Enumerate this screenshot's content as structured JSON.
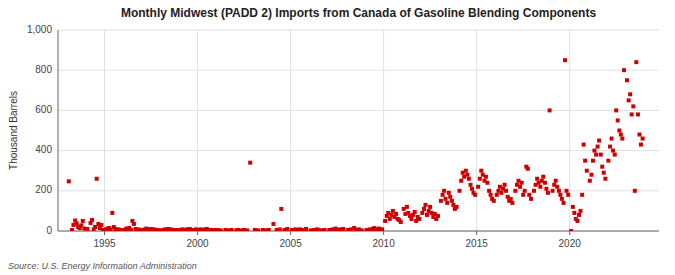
{
  "chart_data": {
    "type": "scatter",
    "title": "Monthly Midwest (PADD 2) Imports from Canada of Gasoline Blending Components",
    "y_label": "Thousand Barrels",
    "annotations": [
      "Source: U.S. Energy Information Administration"
    ],
    "color": "#cc0000",
    "marker": "square",
    "grid": true,
    "xlim": [
      1992.5,
      2024.8
    ],
    "xticks": [
      1995,
      2000,
      2005,
      2010,
      2015,
      2020
    ],
    "ylim": [
      0,
      1000
    ],
    "yticks": [
      0,
      200,
      400,
      600,
      800,
      {
        "value": 1000,
        "label": "1,000"
      }
    ],
    "x": [
      1993.08,
      1993.25,
      1993.33,
      1993.42,
      1993.5,
      1993.58,
      1993.67,
      1993.75,
      1993.83,
      1993.92,
      1994.08,
      1994.25,
      1994.33,
      1994.42,
      1994.5,
      1994.58,
      1994.67,
      1994.75,
      1994.83,
      1994.92,
      1995.08,
      1995.17,
      1995.25,
      1995.33,
      1995.42,
      1995.5,
      1995.58,
      1995.67,
      1995.75,
      1995.83,
      1995.92,
      1996.08,
      1996.17,
      1996.25,
      1996.33,
      1996.42,
      1996.5,
      1996.58,
      1996.67,
      1996.75,
      1996.83,
      1996.92,
      1997.08,
      1997.17,
      1997.25,
      1997.33,
      1997.42,
      1997.5,
      1997.58,
      1997.67,
      1997.75,
      1997.83,
      1997.92,
      1998.08,
      1998.17,
      1998.25,
      1998.33,
      1998.42,
      1998.5,
      1998.58,
      1998.67,
      1998.75,
      1998.83,
      1998.92,
      1999.08,
      1999.17,
      1999.25,
      1999.33,
      1999.42,
      1999.5,
      1999.58,
      1999.67,
      1999.75,
      1999.83,
      1999.92,
      2000.08,
      2000.17,
      2000.25,
      2000.33,
      2000.42,
      2000.5,
      2000.58,
      2000.67,
      2000.75,
      2000.83,
      2000.92,
      2001.08,
      2001.25,
      2001.5,
      2001.67,
      2001.83,
      2002.08,
      2002.17,
      2002.33,
      2002.5,
      2002.67,
      2002.83,
      2003.08,
      2003.25,
      2003.5,
      2003.67,
      2003.83,
      2004.08,
      2004.25,
      2004.42,
      2004.5,
      2004.67,
      2004.83,
      2005.08,
      2005.25,
      2005.42,
      2005.5,
      2005.67,
      2005.83,
      2006.08,
      2006.25,
      2006.42,
      2006.5,
      2006.67,
      2006.83,
      2007.08,
      2007.25,
      2007.42,
      2007.5,
      2007.67,
      2007.83,
      2008.08,
      2008.25,
      2008.42,
      2008.5,
      2008.67,
      2008.83,
      2009.08,
      2009.25,
      2009.33,
      2009.42,
      2009.5,
      2009.58,
      2009.67,
      2009.75,
      2009.83,
      2009.92,
      2010.08,
      2010.17,
      2010.25,
      2010.33,
      2010.42,
      2010.5,
      2010.58,
      2010.67,
      2010.75,
      2010.83,
      2010.92,
      2011.08,
      2011.17,
      2011.25,
      2011.33,
      2011.42,
      2011.5,
      2011.58,
      2011.67,
      2011.75,
      2011.83,
      2011.92,
      2012.08,
      2012.17,
      2012.25,
      2012.33,
      2012.42,
      2012.5,
      2012.58,
      2012.67,
      2012.75,
      2012.83,
      2012.92,
      2013.08,
      2013.17,
      2013.25,
      2013.33,
      2013.42,
      2013.5,
      2013.58,
      2013.67,
      2013.75,
      2013.83,
      2013.92,
      2014.08,
      2014.17,
      2014.25,
      2014.33,
      2014.42,
      2014.5,
      2014.58,
      2014.67,
      2014.75,
      2014.83,
      2014.92,
      2015.08,
      2015.17,
      2015.25,
      2015.33,
      2015.42,
      2015.5,
      2015.58,
      2015.67,
      2015.75,
      2015.83,
      2015.92,
      2016.08,
      2016.17,
      2016.25,
      2016.33,
      2016.42,
      2016.5,
      2016.58,
      2016.67,
      2016.75,
      2016.83,
      2016.92,
      2017.08,
      2017.17,
      2017.25,
      2017.33,
      2017.42,
      2017.5,
      2017.58,
      2017.67,
      2017.75,
      2017.83,
      2017.92,
      2018.08,
      2018.17,
      2018.25,
      2018.33,
      2018.42,
      2018.5,
      2018.58,
      2018.67,
      2018.75,
      2018.83,
      2018.92,
      2019.08,
      2019.17,
      2019.25,
      2019.33,
      2019.42,
      2019.5,
      2019.58,
      2019.67,
      2019.75,
      2019.83,
      2019.92,
      2020.08,
      2020.17,
      2020.25,
      2020.33,
      2020.42,
      2020.5,
      2020.58,
      2020.67,
      2020.75,
      2020.83,
      2020.92,
      2021.08,
      2021.17,
      2021.25,
      2021.33,
      2021.42,
      2021.5,
      2021.58,
      2021.67,
      2021.75,
      2021.83,
      2021.92,
      2022.08,
      2022.17,
      2022.25,
      2022.33,
      2022.42,
      2022.5,
      2022.58,
      2022.67,
      2022.75,
      2022.83,
      2022.92,
      2023.08,
      2023.17,
      2023.25,
      2023.33,
      2023.42,
      2023.5,
      2023.58,
      2023.67,
      2023.75,
      2023.83,
      2023.92
    ],
    "values": [
      247,
      5,
      30,
      52,
      38,
      20,
      15,
      28,
      50,
      12,
      10,
      40,
      55,
      8,
      20,
      260,
      35,
      15,
      30,
      5,
      8,
      12,
      15,
      5,
      90,
      20,
      10,
      5,
      8,
      5,
      5,
      5,
      12,
      8,
      15,
      5,
      50,
      35,
      10,
      5,
      8,
      5,
      5,
      8,
      12,
      5,
      8,
      10,
      5,
      8,
      5,
      5,
      3,
      3,
      5,
      8,
      5,
      10,
      5,
      8,
      5,
      3,
      5,
      3,
      5,
      8,
      5,
      3,
      8,
      5,
      10,
      5,
      3,
      5,
      8,
      5,
      8,
      5,
      5,
      8,
      10,
      5,
      3,
      5,
      3,
      5,
      5,
      3,
      5,
      3,
      5,
      3,
      5,
      3,
      5,
      3,
      340,
      5,
      3,
      5,
      3,
      5,
      35,
      5,
      8,
      110,
      5,
      10,
      5,
      8,
      5,
      8,
      5,
      10,
      3,
      5,
      8,
      5,
      3,
      5,
      5,
      8,
      12,
      5,
      8,
      10,
      5,
      8,
      15,
      5,
      8,
      3,
      5,
      8,
      5,
      10,
      15,
      5,
      8,
      12,
      5,
      8,
      50,
      75,
      90,
      60,
      80,
      100,
      70,
      85,
      60,
      55,
      45,
      110,
      85,
      120,
      90,
      75,
      60,
      80,
      95,
      50,
      70,
      60,
      90,
      110,
      130,
      80,
      100,
      120,
      90,
      70,
      85,
      60,
      75,
      150,
      180,
      200,
      160,
      140,
      190,
      170,
      150,
      130,
      110,
      120,
      200,
      250,
      290,
      270,
      300,
      280,
      260,
      230,
      210,
      190,
      180,
      220,
      260,
      300,
      280,
      250,
      270,
      240,
      200,
      180,
      160,
      150,
      180,
      200,
      220,
      190,
      210,
      230,
      200,
      170,
      150,
      160,
      140,
      200,
      230,
      250,
      220,
      240,
      180,
      200,
      320,
      310,
      180,
      160,
      200,
      230,
      260,
      240,
      220,
      250,
      270,
      240,
      210,
      190,
      600,
      200,
      230,
      250,
      220,
      200,
      180,
      160,
      140,
      850,
      200,
      180,
      0,
      120,
      90,
      60,
      50,
      80,
      100,
      180,
      430,
      350,
      300,
      250,
      280,
      350,
      400,
      380,
      420,
      450,
      380,
      320,
      290,
      260,
      350,
      420,
      460,
      400,
      380,
      600,
      550,
      500,
      480,
      460,
      800,
      750,
      650,
      680,
      580,
      620,
      200,
      840,
      580,
      480,
      430,
      460
    ]
  }
}
